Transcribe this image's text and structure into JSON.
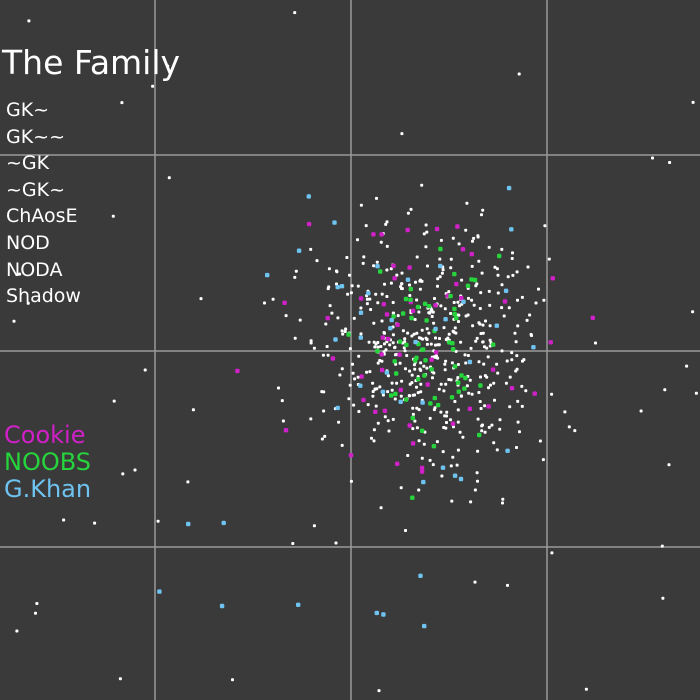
{
  "map": {
    "background": "#3a3a3a",
    "grid_color": "#9a9a9a",
    "grid_lines": 3
  },
  "title": "The Family",
  "tribes": [
    "GK~",
    "GK~~",
    "~GK",
    "~GK~",
    "ChAosE",
    "NOD",
    "NODA",
    "Shadow"
  ],
  "legend": [
    {
      "label": "Cookie",
      "color": "#d020c8"
    },
    {
      "label": "NOOBS",
      "color": "#26d43c"
    },
    {
      "label": "G.Khan",
      "color": "#6fc3f0"
    }
  ],
  "village_colors": {
    "other": "#ffffff",
    "Cookie": "#d020c8",
    "NOOBS": "#26d43c",
    "G.Khan": "#6fc3f0"
  },
  "dot_counts": {
    "other": 560,
    "Cookie": 55,
    "NOOBS": 60,
    "G.Khan": 45
  }
}
